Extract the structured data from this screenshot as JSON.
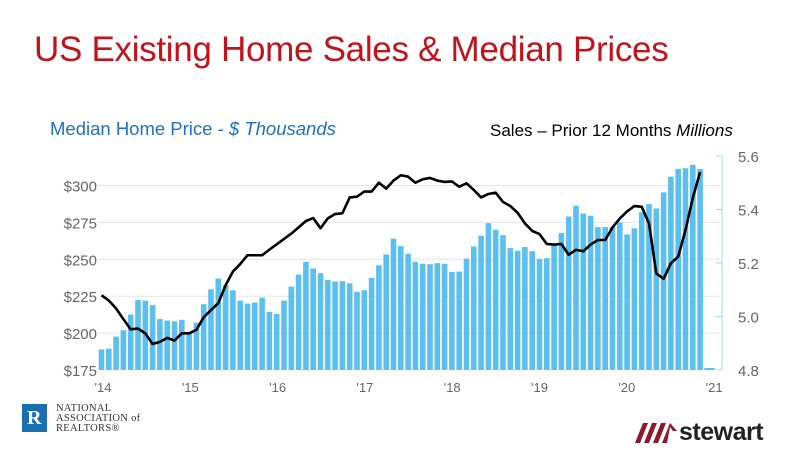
{
  "title": "US Existing Home Sales & Median Prices",
  "subtitle_left": {
    "text": "Median Home Price - ",
    "italic": "$ Thousands"
  },
  "subtitle_right": {
    "text": "Sales – Prior 12 Months ",
    "italic": "Millions"
  },
  "logos": {
    "nar": {
      "mark": "R",
      "lines": [
        "NATIONAL",
        "ASSOCIATION of",
        "REALTORS®"
      ]
    },
    "stewart": "stewart"
  },
  "colors": {
    "title": "#c0141c",
    "bars": "#5bc0ef",
    "line": "#000000",
    "subtitle": "#1f6fc9"
  },
  "chart_data": {
    "type": "bar+line",
    "grid": true,
    "x_start": "2014-01",
    "x_ticks": [
      "'14",
      "'15",
      "'16",
      "'17",
      "'18",
      "'19",
      "'20",
      "'21"
    ],
    "left_axis": {
      "ticks": [
        "$175",
        "$200",
        "$225",
        "$250",
        "$275",
        "$300"
      ],
      "tick_values": [
        175,
        200,
        225,
        250,
        275,
        300
      ],
      "ylim": [
        175,
        320
      ]
    },
    "right_axis": {
      "ticks": [
        "4.8",
        "5.0",
        "5.2",
        "5.4",
        "5.6"
      ],
      "tick_values": [
        4.8,
        5.0,
        5.2,
        5.4,
        5.6
      ],
      "ylim": [
        4.8,
        5.6
      ]
    },
    "series": [
      {
        "type": "bar",
        "axis": "left",
        "values": [
          189,
          189.5,
          197.6,
          202,
          212.6,
          222.5,
          222,
          219,
          209.6,
          208.5,
          208,
          209,
          200,
          207,
          219.6,
          229.7,
          237,
          232.5,
          229,
          222,
          220,
          220.7,
          224,
          214.4,
          213,
          222,
          231.5,
          239.7,
          248.3,
          243.8,
          240.6,
          236,
          235,
          235.2,
          233.8,
          228,
          229,
          237.4,
          246,
          253.3,
          264,
          259,
          253.7,
          248.3,
          247,
          246.7,
          247.4,
          247,
          241.5,
          241.7,
          250.5,
          258.7,
          266,
          274.5,
          270,
          266.4,
          257.6,
          255.8,
          258.3,
          255.5,
          250.3,
          250.8,
          259.6,
          267.8,
          279,
          286.3,
          281,
          279.5,
          271.8,
          271.8,
          271.8,
          275,
          266.9,
          271,
          281.8,
          287.4,
          284.5,
          295.4,
          306,
          311.2,
          311.7,
          314,
          311.2
        ]
      },
      {
        "type": "line",
        "axis": "right",
        "values": [
          5.079,
          5.06,
          5.03,
          4.99,
          4.952,
          4.955,
          4.937,
          4.897,
          4.905,
          4.92,
          4.91,
          4.937,
          4.937,
          4.95,
          4.997,
          5.024,
          5.05,
          5.117,
          5.168,
          5.196,
          5.229,
          5.229,
          5.229,
          5.25,
          5.27,
          5.29,
          5.31,
          5.333,
          5.357,
          5.368,
          5.33,
          5.367,
          5.383,
          5.386,
          5.445,
          5.448,
          5.467,
          5.467,
          5.5,
          5.478,
          5.508,
          5.528,
          5.523,
          5.5,
          5.513,
          5.518,
          5.508,
          5.503,
          5.505,
          5.485,
          5.498,
          5.473,
          5.445,
          5.458,
          5.463,
          5.428,
          5.413,
          5.388,
          5.348,
          5.32,
          5.308,
          5.271,
          5.269,
          5.271,
          5.231,
          5.249,
          5.244,
          5.269,
          5.286,
          5.286,
          5.333,
          5.366,
          5.393,
          5.413,
          5.41,
          5.348,
          5.161,
          5.141,
          5.199,
          5.224,
          5.323,
          5.443,
          5.54
        ]
      }
    ]
  }
}
